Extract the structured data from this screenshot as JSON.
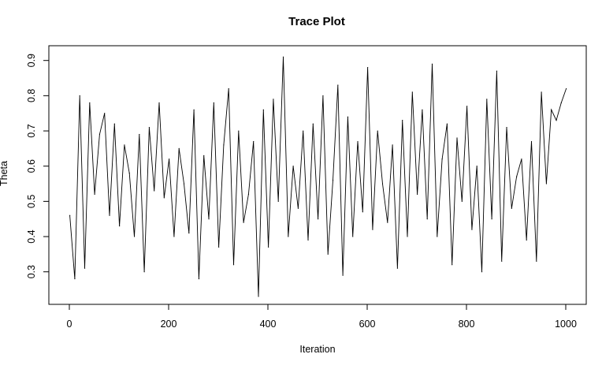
{
  "chart_data": {
    "type": "line",
    "title": "Trace Plot",
    "xlabel": "Iteration",
    "ylabel": "Theta",
    "xlim": [
      0,
      1000
    ],
    "ylim": [
      0.23,
      0.915
    ],
    "x_ticks": [
      0,
      200,
      400,
      600,
      800,
      1000
    ],
    "y_ticks": [
      0.3,
      0.4,
      0.5,
      0.6,
      0.7,
      0.8,
      0.9
    ],
    "grid": false,
    "legend": "none",
    "series_color": "#000000",
    "series": [
      {
        "x_start": 1,
        "x_step": 10,
        "values": [
          0.46,
          0.28,
          0.8,
          0.31,
          0.78,
          0.52,
          0.69,
          0.75,
          0.46,
          0.72,
          0.43,
          0.66,
          0.58,
          0.4,
          0.69,
          0.3,
          0.71,
          0.53,
          0.78,
          0.51,
          0.62,
          0.4,
          0.65,
          0.55,
          0.41,
          0.76,
          0.28,
          0.63,
          0.45,
          0.78,
          0.37,
          0.66,
          0.82,
          0.32,
          0.7,
          0.44,
          0.52,
          0.67,
          0.23,
          0.76,
          0.37,
          0.79,
          0.5,
          0.91,
          0.4,
          0.6,
          0.48,
          0.7,
          0.39,
          0.72,
          0.45,
          0.8,
          0.35,
          0.56,
          0.83,
          0.29,
          0.74,
          0.4,
          0.67,
          0.47,
          0.88,
          0.42,
          0.7,
          0.55,
          0.44,
          0.66,
          0.31,
          0.73,
          0.4,
          0.81,
          0.52,
          0.76,
          0.45,
          0.89,
          0.4,
          0.62,
          0.72,
          0.32,
          0.68,
          0.5,
          0.77,
          0.42,
          0.6,
          0.3,
          0.79,
          0.45,
          0.87,
          0.33,
          0.71,
          0.48,
          0.57,
          0.62,
          0.39,
          0.67,
          0.33,
          0.81,
          0.55,
          0.76,
          0.73,
          0.78,
          0.82
        ]
      }
    ]
  }
}
